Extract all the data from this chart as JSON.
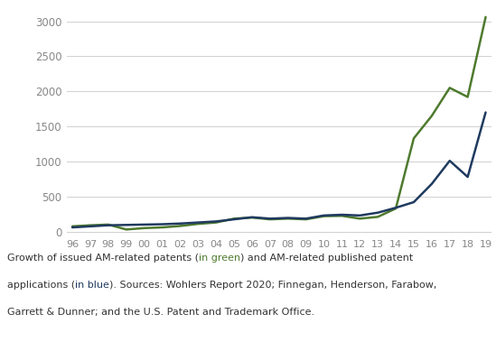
{
  "years": [
    1996,
    1997,
    1998,
    1999,
    2000,
    2001,
    2002,
    2003,
    2004,
    2005,
    2006,
    2007,
    2008,
    2009,
    2010,
    2011,
    2012,
    2013,
    2014,
    2015,
    2016,
    2017,
    2018,
    2019
  ],
  "green_values": [
    75,
    90,
    100,
    30,
    50,
    60,
    80,
    110,
    130,
    185,
    200,
    175,
    185,
    175,
    220,
    225,
    185,
    210,
    330,
    1330,
    1650,
    2050,
    1920,
    3060
  ],
  "blue_values": [
    60,
    75,
    90,
    95,
    100,
    105,
    115,
    130,
    145,
    175,
    205,
    185,
    195,
    185,
    230,
    240,
    230,
    270,
    340,
    420,
    680,
    1010,
    780,
    1700
  ],
  "green_color": "#4e7a2e",
  "blue_color": "#1f3a5f",
  "yticks": [
    0,
    500,
    1000,
    1500,
    2000,
    2500,
    3000
  ],
  "xtick_labels": [
    "96",
    "97",
    "98",
    "99",
    "00",
    "01",
    "02",
    "03",
    "04",
    "05",
    "06",
    "07",
    "08",
    "09",
    "10",
    "11",
    "12",
    "13",
    "14",
    "15",
    "16",
    "17",
    "18",
    "19"
  ],
  "ylim": [
    -60,
    3200
  ],
  "xlim": [
    -0.3,
    23.3
  ],
  "background_color": "#ffffff",
  "grid_color": "#d0d0d0",
  "tick_label_color": "#888888",
  "caption_color": "#333333",
  "caption_green": "#4e7a2e",
  "caption_blue": "#1f3a5f",
  "caption_fontsize": 8.0,
  "line_width": 1.8
}
